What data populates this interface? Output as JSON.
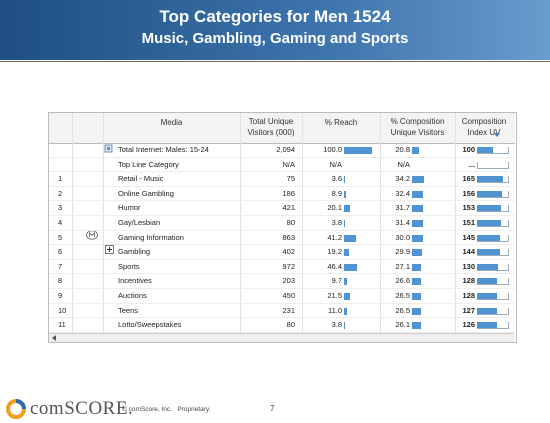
{
  "header": {
    "title": "Top Categories for Men 1524",
    "subtitle": "Music, Gambling, Gaming and Sports"
  },
  "table": {
    "columns": [
      "Media",
      "Total Unique Visitors (000)",
      "% Reach",
      "% Composition Unique Visitors",
      "Composition Index UV"
    ],
    "rows": [
      {
        "rank": null,
        "media": "Total Internet: Males: 15-24",
        "visitors": "2,094",
        "reach": "100.0",
        "composition": "20.8",
        "index": "100"
      },
      {
        "rank": null,
        "media": "Top Line Category",
        "visitors": "N/A",
        "reach": "N/A",
        "composition": "N/A",
        "index": "..."
      },
      {
        "rank": "1",
        "media": "Retail - Music",
        "visitors": "75",
        "reach": "3.6",
        "composition": "34.2",
        "index": "165"
      },
      {
        "rank": "2",
        "media": "Online Gambling",
        "visitors": "186",
        "reach": "8.9",
        "composition": "32.4",
        "index": "156"
      },
      {
        "rank": "3",
        "media": "Humor",
        "visitors": "421",
        "reach": "20.1",
        "composition": "31.7",
        "index": "153"
      },
      {
        "rank": "4",
        "media": "Gay/Lesbian",
        "visitors": "80",
        "reach": "3.8",
        "composition": "31.4",
        "index": "151"
      },
      {
        "rank": "5",
        "media": "Gaming Information",
        "visitors": "863",
        "reach": "41.2",
        "composition": "30.0",
        "index": "145"
      },
      {
        "rank": "6",
        "media": "Gambling",
        "visitors": "402",
        "reach": "19.2",
        "composition": "29.9",
        "index": "144"
      },
      {
        "rank": "7",
        "media": "Sports",
        "visitors": "972",
        "reach": "46.4",
        "composition": "27.1",
        "index": "130"
      },
      {
        "rank": "8",
        "media": "Incentives",
        "visitors": "203",
        "reach": "9.7",
        "composition": "26.6",
        "index": "128"
      },
      {
        "rank": "9",
        "media": "Auctions",
        "visitors": "450",
        "reach": "21.5",
        "composition": "26.5",
        "index": "128"
      },
      {
        "rank": "10",
        "media": "Teens",
        "visitors": "231",
        "reach": "11.0",
        "composition": "26.5",
        "index": "127"
      },
      {
        "rank": "11",
        "media": "Lotto/Sweepstakes",
        "visitors": "80",
        "reach": "3.8",
        "composition": "26.1",
        "index": "126"
      }
    ]
  },
  "footer": {
    "logo": "comSCORE.",
    "copyright": "© comScore, Inc.   Proprietary.",
    "page": "7"
  }
}
